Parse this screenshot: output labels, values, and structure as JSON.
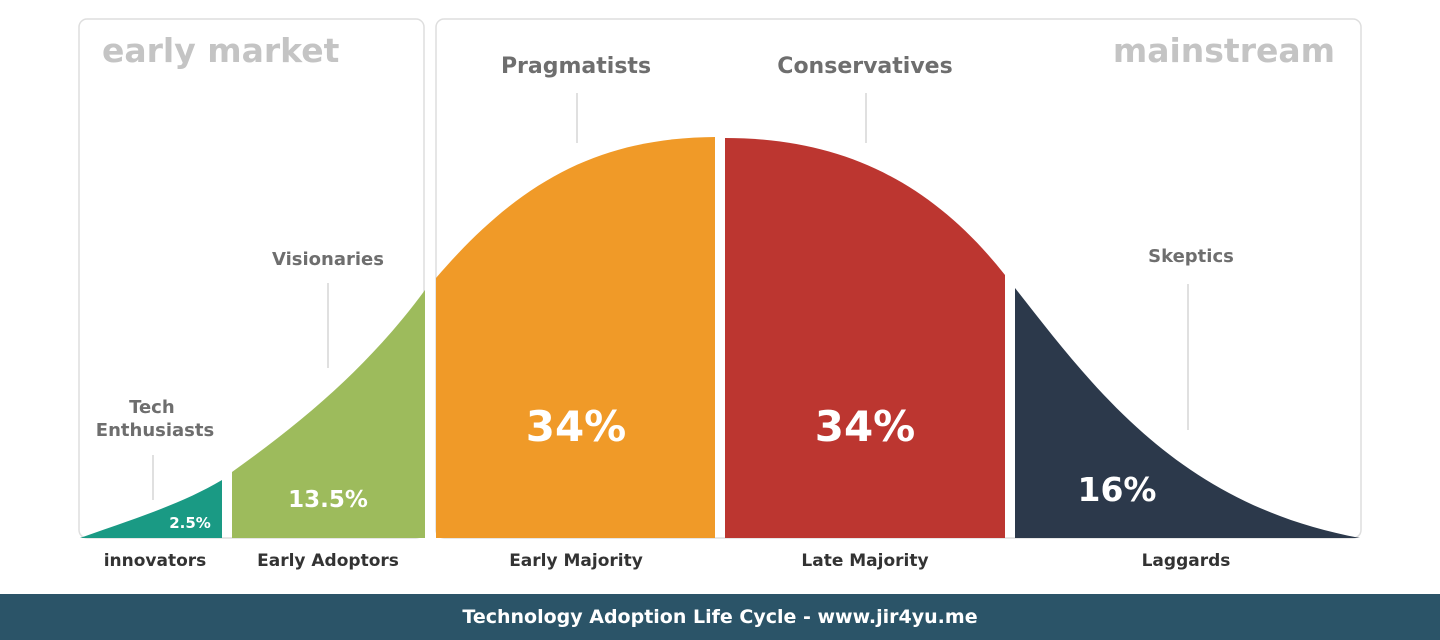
{
  "colors": {
    "innovators": "#1a9a84",
    "early_adopters": "#9dbb5c",
    "early_majority": "#f09a28",
    "late_majority": "#bc3630",
    "laggards": "#2c394b",
    "footer_bg": "#2b5468"
  },
  "regions": {
    "early_market": "early market",
    "mainstream": "mainstream"
  },
  "segments": [
    {
      "key": "innovators",
      "category": "innovators",
      "persona": [
        "Tech",
        "Enthusiasts"
      ],
      "percent": "2.5%",
      "value": 2.5
    },
    {
      "key": "early_adopters",
      "category": "Early Adoptors",
      "persona": [
        "Visionaries"
      ],
      "percent": "13.5%",
      "value": 13.5
    },
    {
      "key": "early_majority",
      "category": "Early Majority",
      "persona": [
        "Pragmatists"
      ],
      "percent": "34%",
      "value": 34
    },
    {
      "key": "late_majority",
      "category": "Late Majority",
      "persona": [
        "Conservatives"
      ],
      "percent": "34%",
      "value": 34
    },
    {
      "key": "laggards",
      "category": "Laggards",
      "persona": [
        "Skeptics"
      ],
      "percent": "16%",
      "value": 16
    }
  ],
  "footer": {
    "title": "Technology Adoption Life Cycle - www.jir4yu.me"
  }
}
